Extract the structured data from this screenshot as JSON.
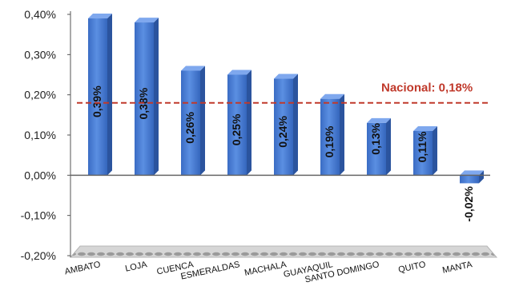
{
  "chart_data": {
    "type": "bar",
    "categories": [
      "AMBATO",
      "LOJA",
      "CUENCA",
      "ESMERALDAS",
      "MACHALA",
      "GUAYAQUIL",
      "SANTO DOMINGO",
      "QUITO",
      "MANTA"
    ],
    "values": [
      0.39,
      0.38,
      0.26,
      0.25,
      0.24,
      0.19,
      0.13,
      0.11,
      -0.02
    ],
    "value_labels": [
      "0,39%",
      "0,38%",
      "0,26%",
      "0,25%",
      "0,24%",
      "0,19%",
      "0,13%",
      "0,11%",
      "-0,02%"
    ],
    "yticks": [
      -0.2,
      -0.1,
      0.0,
      0.1,
      0.2,
      0.3,
      0.4
    ],
    "ytick_labels": [
      "-0,20%",
      "-0,10%",
      "0,00%",
      "0,10%",
      "0,20%",
      "0,30%",
      "0,40%"
    ],
    "ylim": [
      -0.2,
      0.4
    ],
    "reference_line": {
      "value": 0.18,
      "label": "Nacional: 0,18%",
      "color": "#c0392b",
      "style": "dashed"
    },
    "bar_color": "#4a7fd4",
    "bar_style": "3d",
    "grid": false,
    "legend": "none"
  }
}
